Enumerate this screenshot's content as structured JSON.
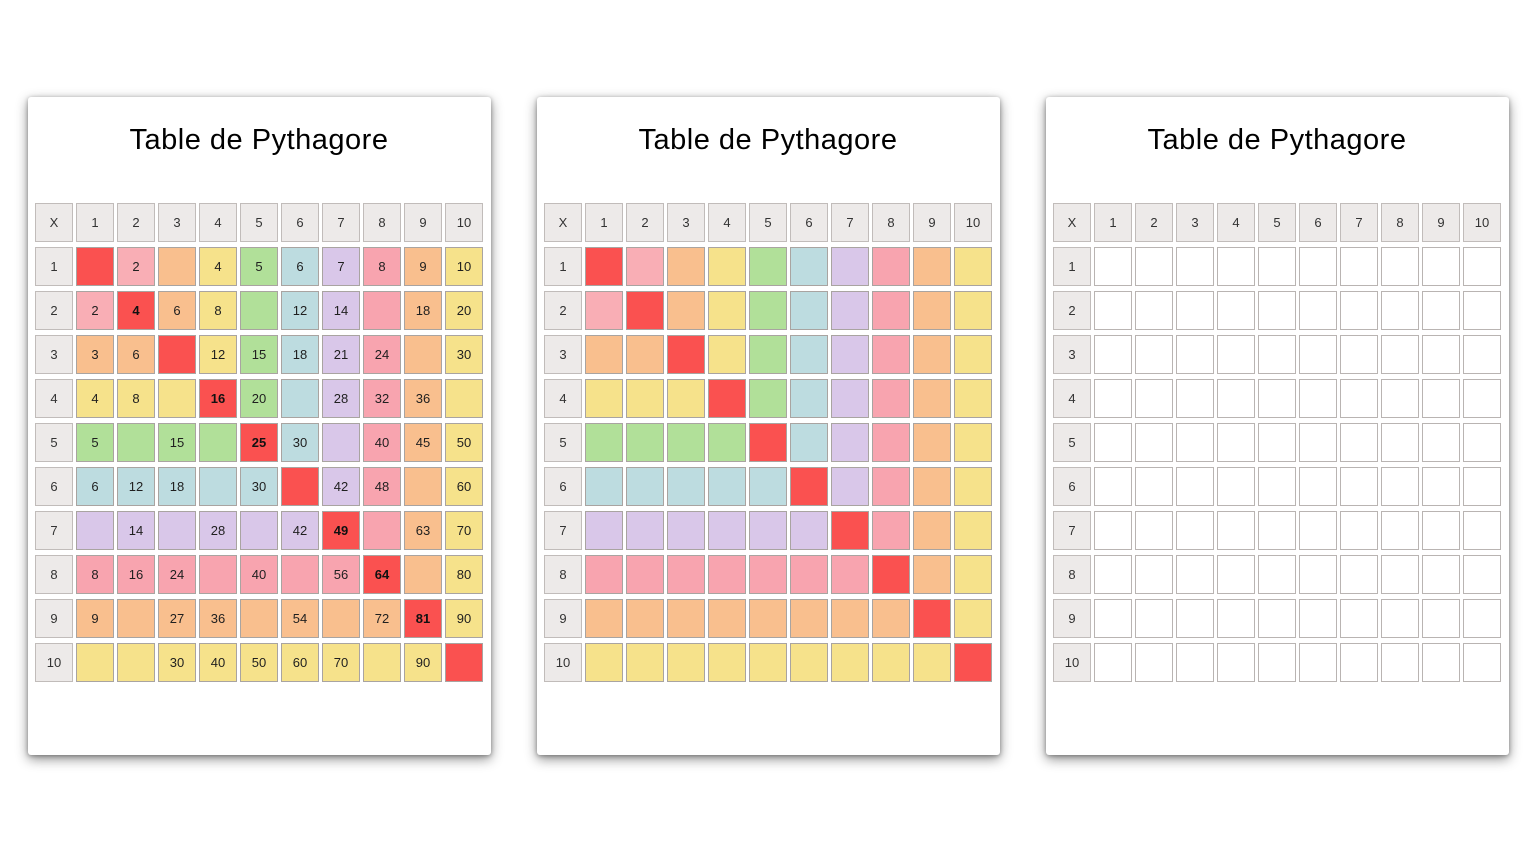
{
  "page": {
    "background": "#FFFFFF"
  },
  "grid": {
    "corner_label": "X",
    "column_headers": [
      "1",
      "2",
      "3",
      "4",
      "5",
      "6",
      "7",
      "8",
      "9",
      "10"
    ],
    "row_headers": [
      "1",
      "2",
      "3",
      "4",
      "5",
      "6",
      "7",
      "8",
      "9",
      "10"
    ],
    "band_colors": [
      "#FA5150",
      "#F9AEB5",
      "#F9BF8E",
      "#F6E28B",
      "#B1E099",
      "#BDDCE0",
      "#D9C7E9",
      "#F8A4AF",
      "#F9BF8E",
      "#F6E28B"
    ],
    "diagonal_color": "#FA5150",
    "header_bg": "#EDEAE9"
  },
  "cards": [
    {
      "title": "Table de Pythagore",
      "mode": "values",
      "values": [
        [
          "",
          "2",
          "",
          "4",
          "5",
          "6",
          "7",
          "8",
          "9",
          "10"
        ],
        [
          "2",
          "4",
          "6",
          "8",
          "",
          "12",
          "14",
          "",
          "18",
          "20"
        ],
        [
          "3",
          "6",
          "",
          "12",
          "15",
          "18",
          "21",
          "24",
          "",
          "30"
        ],
        [
          "4",
          "8",
          "",
          "16",
          "20",
          "",
          "28",
          "32",
          "36",
          ""
        ],
        [
          "5",
          "",
          "15",
          "",
          "25",
          "30",
          "",
          "40",
          "45",
          "50"
        ],
        [
          "6",
          "12",
          "18",
          "",
          "30",
          "",
          "42",
          "48",
          "",
          "60"
        ],
        [
          "",
          "14",
          "",
          "28",
          "",
          "42",
          "49",
          "",
          "63",
          "70"
        ],
        [
          "8",
          "16",
          "24",
          "",
          "40",
          "",
          "56",
          "64",
          "",
          "80"
        ],
        [
          "9",
          "",
          "27",
          "36",
          "",
          "54",
          "",
          "72",
          "81",
          "90"
        ],
        [
          "",
          "",
          "30",
          "40",
          "50",
          "60",
          "70",
          "",
          "90",
          ""
        ]
      ]
    },
    {
      "title": "Table de Pythagore",
      "mode": "colors"
    },
    {
      "title": "Table de Pythagore",
      "mode": "blank"
    }
  ]
}
